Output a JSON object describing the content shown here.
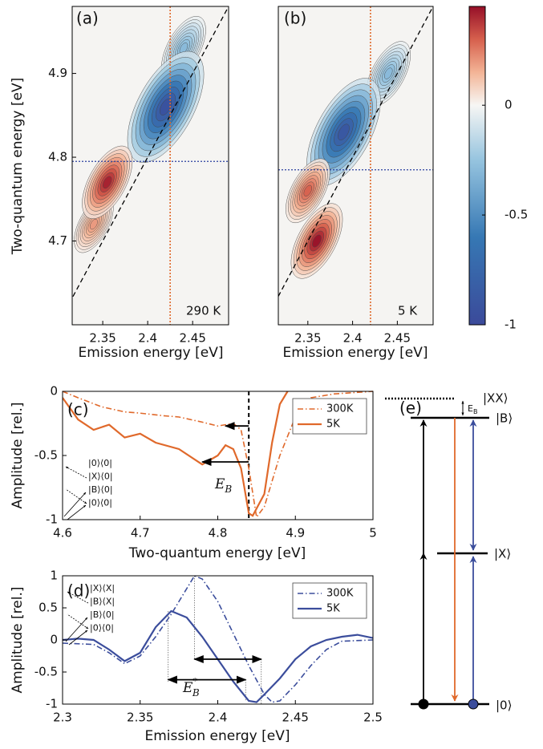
{
  "chart_data": [
    {
      "type": "contour",
      "panel_label": "(a)",
      "annotation": "290 K",
      "xlabel": "Emission energy [eV]",
      "ylabel": "Two-quantum energy [eV]",
      "xlim": [
        2.316,
        2.49
      ],
      "ylim": [
        4.6,
        4.98
      ],
      "xticks": [
        2.35,
        2.4,
        2.45
      ],
      "yticks": [
        4.7,
        4.8,
        4.9
      ],
      "hline": 4.795,
      "vline": 2.425,
      "diagonal": {
        "x": [
          2.3,
          2.49
        ],
        "y": [
          4.6,
          4.98
        ]
      },
      "peaks": [
        {
          "x": 2.44,
          "y": 4.93,
          "value": -0.3
        },
        {
          "x": 2.42,
          "y": 4.86,
          "value": -0.95
        },
        {
          "x": 2.34,
          "y": 4.72,
          "value": 0.2
        },
        {
          "x": 2.355,
          "y": 4.77,
          "value": 0.42
        }
      ]
    },
    {
      "type": "contour",
      "panel_label": "(b)",
      "annotation": "5 K",
      "xlabel": "Emission energy [eV]",
      "xlim": [
        2.317,
        2.49
      ],
      "ylim": [
        4.6,
        4.98
      ],
      "xticks": [
        2.35,
        2.4,
        2.45
      ],
      "hline": 4.785,
      "vline": 2.42,
      "diagonal": {
        "x": [
          2.3,
          2.49
        ],
        "y": [
          4.6,
          4.98
        ]
      },
      "peaks": [
        {
          "x": 2.44,
          "y": 4.9,
          "value": -0.3
        },
        {
          "x": 2.39,
          "y": 4.83,
          "value": -0.9
        },
        {
          "x": 2.35,
          "y": 4.76,
          "value": 0.3
        },
        {
          "x": 2.36,
          "y": 4.7,
          "value": 0.45
        }
      ]
    },
    {
      "type": "colorbar",
      "zlim": [
        -1,
        0.45
      ],
      "zticks": [
        -1,
        -0.5,
        0
      ]
    },
    {
      "type": "line",
      "panel_label": "(c)",
      "xlabel": "Two-quantum energy [eV]",
      "ylabel": "Amplitude [rel.]",
      "xlim": [
        4.6,
        5
      ],
      "ylim": [
        -1,
        0
      ],
      "xticks": [
        4.6,
        4.7,
        4.8,
        4.9,
        5
      ],
      "yticks": [
        -1,
        -0.5,
        0
      ],
      "legend": "upper right",
      "series": [
        {
          "name": "300K",
          "color": "#e0692b",
          "dash": "dashdot",
          "x": [
            4.6,
            4.62,
            4.65,
            4.68,
            4.7,
            4.73,
            4.75,
            4.78,
            4.8,
            4.82,
            4.83,
            4.84,
            4.85,
            4.86,
            4.88,
            4.9,
            4.92,
            4.95,
            5.0
          ],
          "values": [
            0,
            -0.05,
            -0.12,
            -0.16,
            -0.17,
            -0.19,
            -0.2,
            -0.24,
            -0.27,
            -0.25,
            -0.3,
            -0.6,
            -0.98,
            -0.9,
            -0.5,
            -0.2,
            -0.05,
            -0.02,
            0
          ]
        },
        {
          "name": "5K",
          "color": "#e0692b",
          "dash": "solid",
          "x": [
            4.6,
            4.62,
            4.64,
            4.66,
            4.68,
            4.7,
            4.72,
            4.75,
            4.78,
            4.8,
            4.81,
            4.82,
            4.83,
            4.84,
            4.845,
            4.86,
            4.87,
            4.88,
            4.89
          ],
          "values": [
            -0.05,
            -0.22,
            -0.3,
            -0.26,
            -0.36,
            -0.33,
            -0.4,
            -0.45,
            -0.57,
            -0.5,
            -0.42,
            -0.45,
            -0.6,
            -0.95,
            -0.97,
            -0.8,
            -0.4,
            -0.1,
            0
          ]
        }
      ],
      "vline": 4.84,
      "arrows": [
        {
          "x": [
            4.84,
            4.81
          ],
          "y": -0.27
        },
        {
          "x": [
            4.84,
            4.78
          ],
          "y": -0.55
        }
      ],
      "annotation": {
        "text": "E",
        "sub": "B"
      },
      "inset_labels": [
        "|0⟩⟨0|",
        "|X⟩⟨0|",
        "|B⟩⟨0|",
        "|0⟩⟨0|"
      ]
    },
    {
      "type": "line",
      "panel_label": "(d)",
      "xlabel": "Emission energy [eV]",
      "ylabel": "Amplitude [rel.]",
      "xlim": [
        2.3,
        2.5
      ],
      "ylim": [
        -1,
        1
      ],
      "xticks": [
        2.3,
        2.35,
        2.4,
        2.45,
        2.5
      ],
      "yticks": [
        -1,
        -0.5,
        0,
        0.5,
        1
      ],
      "legend": "upper right",
      "series": [
        {
          "name": "300K",
          "color": "#3b4d9c",
          "dash": "dashdot",
          "x": [
            2.3,
            2.32,
            2.33,
            2.34,
            2.35,
            2.36,
            2.37,
            2.38,
            2.385,
            2.39,
            2.4,
            2.41,
            2.42,
            2.43,
            2.435,
            2.44,
            2.45,
            2.46,
            2.47,
            2.48,
            2.5
          ],
          "values": [
            -0.05,
            -0.07,
            -0.2,
            -0.37,
            -0.25,
            0.05,
            0.4,
            0.8,
            1.0,
            0.95,
            0.6,
            0.1,
            -0.4,
            -0.85,
            -0.97,
            -0.95,
            -0.7,
            -0.4,
            -0.15,
            -0.02,
            0
          ]
        },
        {
          "name": "5K",
          "color": "#3b4d9c",
          "dash": "solid",
          "x": [
            2.3,
            2.31,
            2.32,
            2.33,
            2.34,
            2.35,
            2.36,
            2.37,
            2.38,
            2.39,
            2.4,
            2.41,
            2.42,
            2.425,
            2.43,
            2.44,
            2.45,
            2.46,
            2.47,
            2.48,
            2.49,
            2.5
          ],
          "values": [
            0,
            0.02,
            0,
            -0.15,
            -0.33,
            -0.2,
            0.2,
            0.45,
            0.35,
            0.05,
            -0.3,
            -0.65,
            -0.95,
            -0.97,
            -0.85,
            -0.6,
            -0.3,
            -0.1,
            0,
            0.05,
            0.08,
            0.03
          ]
        }
      ],
      "drops": [
        {
          "x": 2.368,
          "y": [
            0.45,
            -0.65
          ]
        },
        {
          "x": 2.385,
          "y": [
            1,
            -0.3
          ]
        },
        {
          "x": 2.418,
          "y": [
            -0.62,
            -0.95
          ]
        },
        {
          "x": 2.428,
          "y": [
            -0.3,
            -1
          ]
        }
      ],
      "arrows": [
        {
          "x": [
            2.385,
            2.428
          ],
          "y": -0.3,
          "both": true
        },
        {
          "x": [
            2.368,
            2.418
          ],
          "y": -0.62,
          "both": true
        }
      ],
      "annotation": {
        "text": "E",
        "sup": "*",
        "sub": "B"
      },
      "inset_labels": [
        "|X⟩⟨X|",
        "|B⟩⟨X|",
        "|B⟩⟨0|",
        "|0⟩⟨0|"
      ]
    }
  ],
  "diagram": {
    "label": "(e)",
    "levels": [
      "|XX⟩",
      "|B⟩",
      "|X⟩",
      "|0⟩"
    ],
    "gap": {
      "text": "E",
      "sub": "B"
    }
  }
}
